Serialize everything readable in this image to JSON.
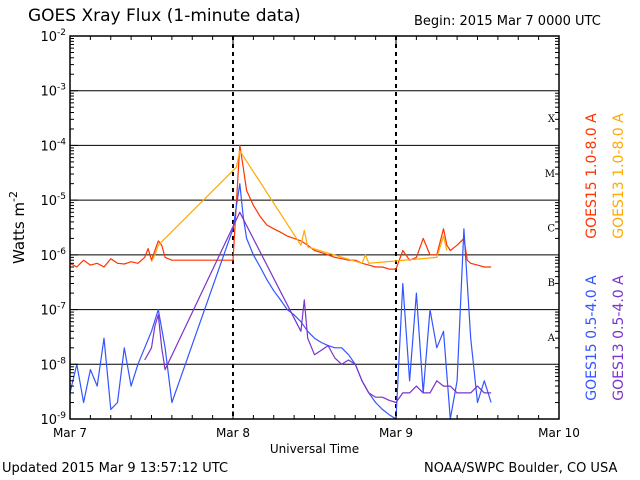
{
  "header": {
    "title": "GOES Xray Flux (1-minute data)",
    "begin": "Begin:  2015 Mar 7 0000 UTC"
  },
  "footer": {
    "updated": "Updated 2015 Mar  9 13:57:12 UTC",
    "credit": "NOAA/SWPC Boulder, CO USA"
  },
  "chart_data": {
    "type": "line",
    "title": "GOES Xray Flux (1-minute data)",
    "xlabel": "Universal Time",
    "ylabel": "Watts m",
    "ylabel_superscript": "-2",
    "log_scale_y": true,
    "ylim": [
      1e-09,
      0.01
    ],
    "xlim": [
      0,
      72
    ],
    "x_unit": "hours since 2015 Mar 7 0000 UTC",
    "x_ticks": [
      {
        "value": 0,
        "label": "Mar 7"
      },
      {
        "value": 24,
        "label": "Mar 8"
      },
      {
        "value": 48,
        "label": "Mar 9"
      },
      {
        "value": 72,
        "label": "Mar 10"
      }
    ],
    "y_ticks": [
      {
        "exp": -9,
        "base": "10",
        "sup": "-9"
      },
      {
        "exp": -8,
        "base": "10",
        "sup": "-8"
      },
      {
        "exp": -7,
        "base": "10",
        "sup": "-7"
      },
      {
        "exp": -6,
        "base": "10",
        "sup": "-6"
      },
      {
        "exp": -5,
        "base": "10",
        "sup": "-5"
      },
      {
        "exp": -4,
        "base": "10",
        "sup": "-4"
      },
      {
        "exp": -3,
        "base": "10",
        "sup": "-3"
      },
      {
        "exp": -2,
        "base": "10",
        "sup": "-2"
      }
    ],
    "flare_classes": [
      {
        "label": "A",
        "exp": -7.5
      },
      {
        "label": "B",
        "exp": -6.5
      },
      {
        "label": "C",
        "exp": -5.5
      },
      {
        "label": "M",
        "exp": -4.5
      },
      {
        "label": "X",
        "exp": -3.5
      }
    ],
    "grid": "horizontal lines at each decade from 1e-8 to 1e-3; dashed vertical day separators",
    "legend_placement": "right, vertical",
    "series": [
      {
        "name": "GOES15 1.0-8.0 A",
        "color": "#ff3300",
        "points": [
          [
            0,
            7e-07
          ],
          [
            1,
            6e-07
          ],
          [
            2,
            8e-07
          ],
          [
            3,
            6.5e-07
          ],
          [
            4,
            7e-07
          ],
          [
            5,
            6e-07
          ],
          [
            6,
            8.5e-07
          ],
          [
            7,
            7e-07
          ],
          [
            8,
            6.8e-07
          ],
          [
            9,
            7.5e-07
          ],
          [
            10,
            7e-07
          ],
          [
            11,
            9e-07
          ],
          [
            11.5,
            1.3e-06
          ],
          [
            12,
            8e-07
          ],
          [
            12.5,
            1.2e-06
          ],
          [
            13,
            1.8e-06
          ],
          [
            13.5,
            1.5e-06
          ],
          [
            14,
            9e-07
          ],
          [
            15,
            8e-07
          ],
          [
            24,
            8e-07
          ],
          [
            25,
            0.0001
          ],
          [
            25.5,
            4e-05
          ],
          [
            26,
            1.5e-05
          ],
          [
            27,
            8e-06
          ],
          [
            28,
            5e-06
          ],
          [
            29,
            3.5e-06
          ],
          [
            30,
            3e-06
          ],
          [
            31,
            2.6e-06
          ],
          [
            32,
            2.2e-06
          ],
          [
            33,
            2e-06
          ],
          [
            34,
            1.8e-06
          ],
          [
            35,
            1.5e-06
          ],
          [
            36,
            1.2e-06
          ],
          [
            37,
            1.1e-06
          ],
          [
            38,
            1e-06
          ],
          [
            39,
            9e-07
          ],
          [
            40,
            8.5e-07
          ],
          [
            41,
            8e-07
          ],
          [
            42,
            8e-07
          ],
          [
            43,
            7e-07
          ],
          [
            44,
            6.5e-07
          ],
          [
            45,
            6e-07
          ],
          [
            46,
            6e-07
          ],
          [
            47,
            5.5e-07
          ],
          [
            48,
            5.5e-07
          ],
          [
            49,
            1.2e-06
          ],
          [
            50,
            8e-07
          ],
          [
            51,
            9e-07
          ],
          [
            52,
            2e-06
          ],
          [
            53,
            1e-06
          ],
          [
            54,
            1e-06
          ],
          [
            55,
            3e-06
          ],
          [
            55.5,
            1.5e-06
          ],
          [
            56,
            1.2e-06
          ],
          [
            57,
            1.5e-06
          ],
          [
            58,
            2e-06
          ],
          [
            58.5,
            8e-07
          ],
          [
            59,
            7e-07
          ],
          [
            60,
            6.5e-07
          ],
          [
            61,
            6e-07
          ],
          [
            62,
            6e-07
          ]
        ]
      },
      {
        "name": "GOES13 1.0-8.0 A",
        "color": "#ffaa00",
        "points": [
          [
            12,
            7.5e-07
          ],
          [
            12.5,
            1e-06
          ],
          [
            13,
            1.5e-06
          ],
          [
            24.5,
            4e-05
          ],
          [
            25,
            8e-05
          ],
          [
            34,
            1.5e-06
          ],
          [
            34.5,
            2.8e-06
          ],
          [
            35,
            1.4e-06
          ],
          [
            43,
            7e-07
          ],
          [
            43.5,
            1e-06
          ],
          [
            44,
            7e-07
          ],
          [
            54,
            9e-07
          ],
          [
            55,
            2.2e-06
          ],
          [
            55.5,
            1.2e-06
          ]
        ]
      },
      {
        "name": "GOES15 0.5-4.0 A",
        "color": "#3355ff",
        "points": [
          [
            0,
            3e-09
          ],
          [
            1,
            1e-08
          ],
          [
            2,
            2e-09
          ],
          [
            3,
            8e-09
          ],
          [
            4,
            4e-09
          ],
          [
            5,
            3e-08
          ],
          [
            6,
            1.5e-09
          ],
          [
            7,
            2e-09
          ],
          [
            8,
            2e-08
          ],
          [
            9,
            4e-09
          ],
          [
            10,
            1e-08
          ],
          [
            11,
            2e-08
          ],
          [
            12,
            4e-08
          ],
          [
            13,
            1e-07
          ],
          [
            14,
            2e-08
          ],
          [
            15,
            2e-09
          ],
          [
            24,
            3e-06
          ],
          [
            25,
            2e-05
          ],
          [
            25.5,
            5e-06
          ],
          [
            26,
            2e-06
          ],
          [
            27,
            1e-06
          ],
          [
            28,
            6e-07
          ],
          [
            29,
            3.5e-07
          ],
          [
            30,
            2.2e-07
          ],
          [
            31,
            1.5e-07
          ],
          [
            32,
            1e-07
          ],
          [
            33,
            8e-08
          ],
          [
            34,
            6e-08
          ],
          [
            35,
            4e-08
          ],
          [
            36,
            3e-08
          ],
          [
            37,
            2.5e-08
          ],
          [
            38,
            2.2e-08
          ],
          [
            39,
            2e-08
          ],
          [
            40,
            2e-08
          ],
          [
            41,
            1.5e-08
          ],
          [
            42,
            1e-08
          ],
          [
            43,
            5e-09
          ],
          [
            44,
            3e-09
          ],
          [
            45,
            2e-09
          ],
          [
            46,
            1.5e-09
          ],
          [
            47,
            1.2e-09
          ],
          [
            48,
            1e-09
          ],
          [
            49,
            3e-07
          ],
          [
            50,
            5e-09
          ],
          [
            51,
            2e-07
          ],
          [
            52,
            3e-09
          ],
          [
            53,
            1e-07
          ],
          [
            54,
            2e-08
          ],
          [
            55,
            4e-08
          ],
          [
            56,
            1e-09
          ],
          [
            57,
            5e-09
          ],
          [
            58,
            3e-06
          ],
          [
            59,
            3e-08
          ],
          [
            60,
            2e-09
          ],
          [
            61,
            5e-09
          ],
          [
            62,
            2e-09
          ]
        ]
      },
      {
        "name": "GOES13 0.5-4.0 A",
        "color": "#7a33cc",
        "points": [
          [
            11,
            1.2e-08
          ],
          [
            12,
            2e-08
          ],
          [
            12.5,
            5e-08
          ],
          [
            13,
            8e-08
          ],
          [
            13.5,
            2e-08
          ],
          [
            14,
            8e-09
          ],
          [
            25,
            6e-06
          ],
          [
            34,
            4e-08
          ],
          [
            34.5,
            1.5e-07
          ],
          [
            35,
            3e-08
          ],
          [
            36,
            1.5e-08
          ],
          [
            37,
            1.8e-08
          ],
          [
            38,
            2.2e-08
          ],
          [
            39,
            1.3e-08
          ],
          [
            40,
            1e-08
          ],
          [
            41,
            1.2e-08
          ],
          [
            42,
            1e-08
          ],
          [
            43,
            5e-09
          ],
          [
            44,
            3e-09
          ],
          [
            45,
            2.5e-09
          ],
          [
            46,
            2.5e-09
          ],
          [
            47,
            2.2e-09
          ],
          [
            48,
            2e-09
          ],
          [
            49,
            3e-09
          ],
          [
            50,
            3e-09
          ],
          [
            51,
            4e-09
          ],
          [
            52,
            3e-09
          ],
          [
            53,
            3e-09
          ],
          [
            54,
            5e-09
          ],
          [
            55,
            4e-09
          ],
          [
            56,
            4e-09
          ],
          [
            57,
            3e-09
          ],
          [
            58,
            3e-09
          ],
          [
            59,
            3e-09
          ],
          [
            60,
            4e-09
          ],
          [
            61,
            3e-09
          ],
          [
            62,
            3e-09
          ]
        ]
      }
    ]
  }
}
